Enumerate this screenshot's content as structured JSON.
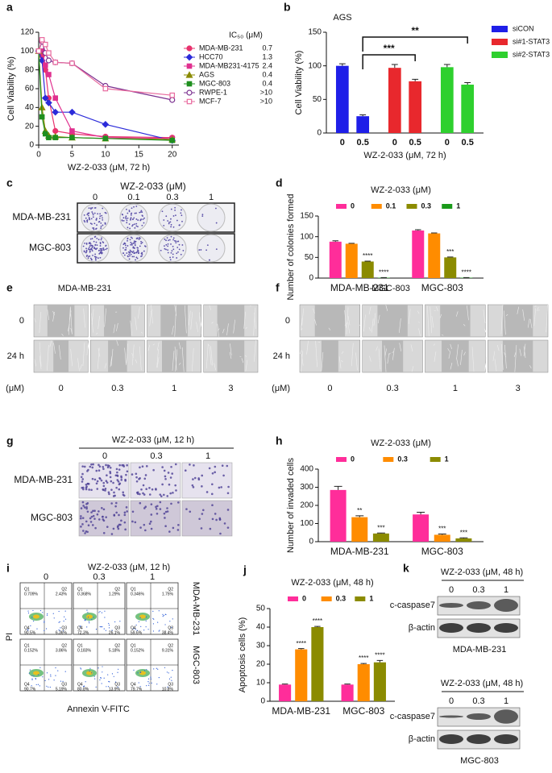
{
  "chart_data": [
    {
      "panel": "a",
      "type": "line",
      "x_label": "WZ-2-033 (μM, 72 h)",
      "y_label": "Cell Viability (%)",
      "legend_title": "IC₅₀ (μM)",
      "x": [
        0,
        0.5,
        1,
        1.5,
        2.5,
        5,
        10,
        20
      ],
      "xlim": [
        0,
        21
      ],
      "xticks": [
        0,
        5,
        10,
        15,
        20
      ],
      "ylim": [
        0,
        120
      ],
      "yticks": [
        0,
        20,
        40,
        60,
        80,
        100,
        120
      ],
      "series": [
        {
          "name": "MDA-MB-231",
          "color": "#e8336e",
          "marker": "circle",
          "ic50": "0.7",
          "values": [
            100,
            95,
            80,
            50,
            15,
            12,
            9,
            8
          ]
        },
        {
          "name": "HCC70",
          "color": "#2b2bd9",
          "marker": "diamond",
          "ic50": "1.3",
          "values": [
            100,
            90,
            50,
            45,
            35,
            35,
            22,
            5
          ]
        },
        {
          "name": "MDA-MB231-4175",
          "color": "#e0308f",
          "marker": "square",
          "ic50": "2.4",
          "values": [
            100,
            100,
            85,
            75,
            50,
            15,
            8,
            7
          ]
        },
        {
          "name": "AGS",
          "color": "#8a8a00",
          "marker": "triangle",
          "ic50": "0.4",
          "values": [
            100,
            40,
            15,
            10,
            9,
            8,
            7,
            6
          ]
        },
        {
          "name": "MGC-803",
          "color": "#1f8f1f",
          "marker": "square",
          "ic50": "0.4",
          "values": [
            100,
            30,
            12,
            8,
            8,
            8,
            7,
            5
          ]
        },
        {
          "name": "RWPE-1",
          "color": "#7a2f8f",
          "marker": "circle-open",
          "ic50": ">10",
          "values": [
            100,
            110,
            98,
            90,
            88,
            87,
            63,
            48
          ]
        },
        {
          "name": "MCF-7",
          "color": "#e86a9e",
          "marker": "square-open",
          "ic50": ">10",
          "values": [
            100,
            112,
            107,
            98,
            88,
            87,
            60,
            53
          ]
        }
      ]
    },
    {
      "panel": "b",
      "type": "bar",
      "group_by": "series",
      "legend": "right",
      "title": "AGS",
      "x_label": "WZ-2-033 (μM, 72 h)",
      "y_label": "Cell Viability (%)",
      "categories": [
        "0",
        "0.5"
      ],
      "ylim": [
        0,
        150
      ],
      "yticks": [
        0,
        50,
        100,
        150
      ],
      "significance": [
        "***",
        "**"
      ],
      "series": [
        {
          "name": "siCON",
          "color": "#1f1fe8",
          "values": [
            100,
            25
          ],
          "errors": [
            3,
            2
          ]
        },
        {
          "name": "si#1-STAT3",
          "color": "#e8282d",
          "values": [
            97,
            77
          ],
          "errors": [
            5,
            3
          ]
        },
        {
          "name": "si#2-STAT3",
          "color": "#2ed02e",
          "values": [
            98,
            72
          ],
          "errors": [
            4,
            3
          ]
        }
      ]
    },
    {
      "panel": "d",
      "type": "bar",
      "group_by": "category",
      "legend": "top",
      "title": "WZ-2-033 (μM)",
      "y_label": "Number of colonies formed",
      "categories": [
        "MDA-MB-231",
        "MGC-803"
      ],
      "ylim": [
        0,
        150
      ],
      "yticks": [
        0,
        50,
        100,
        150
      ],
      "series": [
        {
          "name": "0",
          "color": "#ff2d9a",
          "values": [
            88,
            115
          ],
          "errors": [
            2,
            2
          ]
        },
        {
          "name": "0.1",
          "color": "#ff8c00",
          "values": [
            83,
            108
          ],
          "errors": [
            1,
            1
          ]
        },
        {
          "name": "0.3",
          "color": "#8b8b00",
          "values": [
            40,
            50
          ],
          "errors": [
            1,
            1
          ],
          "annotations": [
            "****",
            "***"
          ]
        },
        {
          "name": "1",
          "color": "#1a9a1a",
          "values": [
            1,
            1
          ],
          "errors": [
            0.3,
            0.3
          ],
          "annotations": [
            "****",
            "****"
          ]
        }
      ]
    },
    {
      "panel": "h",
      "type": "bar",
      "group_by": "category",
      "legend": "top",
      "title": "WZ-2-033 (μM)",
      "y_label": "Number of invaded cells",
      "categories": [
        "MDA-MB-231",
        "MGC-803"
      ],
      "ylim": [
        0,
        400
      ],
      "yticks": [
        0,
        100,
        200,
        300,
        400
      ],
      "series": [
        {
          "name": "0",
          "color": "#ff2d9a",
          "values": [
            285,
            150
          ],
          "errors": [
            20,
            12
          ]
        },
        {
          "name": "0.3",
          "color": "#ff8c00",
          "values": [
            135,
            38
          ],
          "errors": [
            8,
            4
          ],
          "annotations": [
            "**",
            "***"
          ]
        },
        {
          "name": "1",
          "color": "#8b8b00",
          "values": [
            45,
            18
          ],
          "errors": [
            3,
            3
          ],
          "annotations": [
            "***",
            "***"
          ]
        }
      ]
    },
    {
      "panel": "j",
      "type": "bar",
      "group_by": "category",
      "legend": "top",
      "title": "WZ-2-033 (μM, 48 h)",
      "y_label": "Apoptosis cells (%)",
      "categories": [
        "MDA-MB-231",
        "MGC-803"
      ],
      "ylim": [
        0,
        50
      ],
      "yticks": [
        0,
        10,
        20,
        30,
        40,
        50
      ],
      "series": [
        {
          "name": "0",
          "color": "#ff2d9a",
          "values": [
            9,
            9
          ],
          "errors": [
            0.3,
            0.3
          ]
        },
        {
          "name": "0.3",
          "color": "#ff8c00",
          "values": [
            28,
            20
          ],
          "errors": [
            0.4,
            0.4
          ],
          "annotations": [
            "****",
            "****"
          ]
        },
        {
          "name": "1",
          "color": "#8b8b00",
          "values": [
            40,
            21
          ],
          "errors": [
            0.4,
            1
          ],
          "annotations": [
            "****",
            "****"
          ]
        }
      ]
    }
  ],
  "panels": {
    "c": {
      "letter": "c",
      "title": "WZ-2-033 (μM)",
      "doses": [
        "0",
        "0.1",
        "0.3",
        "1"
      ],
      "rows": [
        "MDA-MB-231",
        "MGC-803"
      ]
    },
    "e": {
      "letter": "e",
      "title": "MDA-MB-231",
      "rows": [
        "0",
        "24 h"
      ],
      "unit": "(μM)",
      "doses": [
        "0",
        "0.3",
        "1",
        "3"
      ]
    },
    "f": {
      "letter": "f",
      "title": "MGC-803",
      "rows": [
        "0",
        "24 h"
      ],
      "unit": "(μM)",
      "doses": [
        "0",
        "0.3",
        "1",
        "3"
      ]
    },
    "g": {
      "letter": "g",
      "title": "WZ-2-033 (μM, 12 h)",
      "doses": [
        "0",
        "0.3",
        "1"
      ],
      "rows": [
        "MDA-MB-231",
        "MGC-803"
      ]
    },
    "i": {
      "letter": "i",
      "title": "WZ-2-033 (μM, 12 h)",
      "doses": [
        "0",
        "0.3",
        "1"
      ],
      "rows": [
        "MDA-MB-231",
        "MGC-803"
      ],
      "y_label": "PI",
      "x_label": "Annexin V-FITC",
      "quadrant_names": [
        "Q1",
        "Q2",
        "Q4",
        "Q3"
      ],
      "quadrant_values": [
        [
          [
            "0.709%",
            "2.43%",
            "90.5%",
            "6.36%"
          ],
          [
            "0.368%",
            "1.29%",
            "72.3%",
            "26.1%"
          ],
          [
            "0.346%",
            "1.75%",
            "59.6%",
            "38.4%"
          ]
        ],
        [
          [
            "0.152%",
            "3.86%",
            "90.7%",
            "5.19%"
          ],
          [
            "0.183%",
            "5.18%",
            "80.8%",
            "13.9%"
          ],
          [
            "0.152%",
            "9.31%",
            "79.7%",
            "10.8%"
          ]
        ]
      ]
    },
    "k": {
      "letter": "k",
      "blots": [
        {
          "title": "WZ-2-033 (μM, 48 h)",
          "doses": [
            "0",
            "0.3",
            "1"
          ],
          "bands": [
            "c-caspase7",
            "β-actin"
          ],
          "cell": "MDA-MB-231"
        },
        {
          "title": "WZ-2-033 (μM, 48 h)",
          "doses": [
            "0",
            "0.3",
            "1"
          ],
          "bands": [
            "c-caspase7",
            "β-actin"
          ],
          "cell": "MGC-803"
        }
      ]
    }
  }
}
